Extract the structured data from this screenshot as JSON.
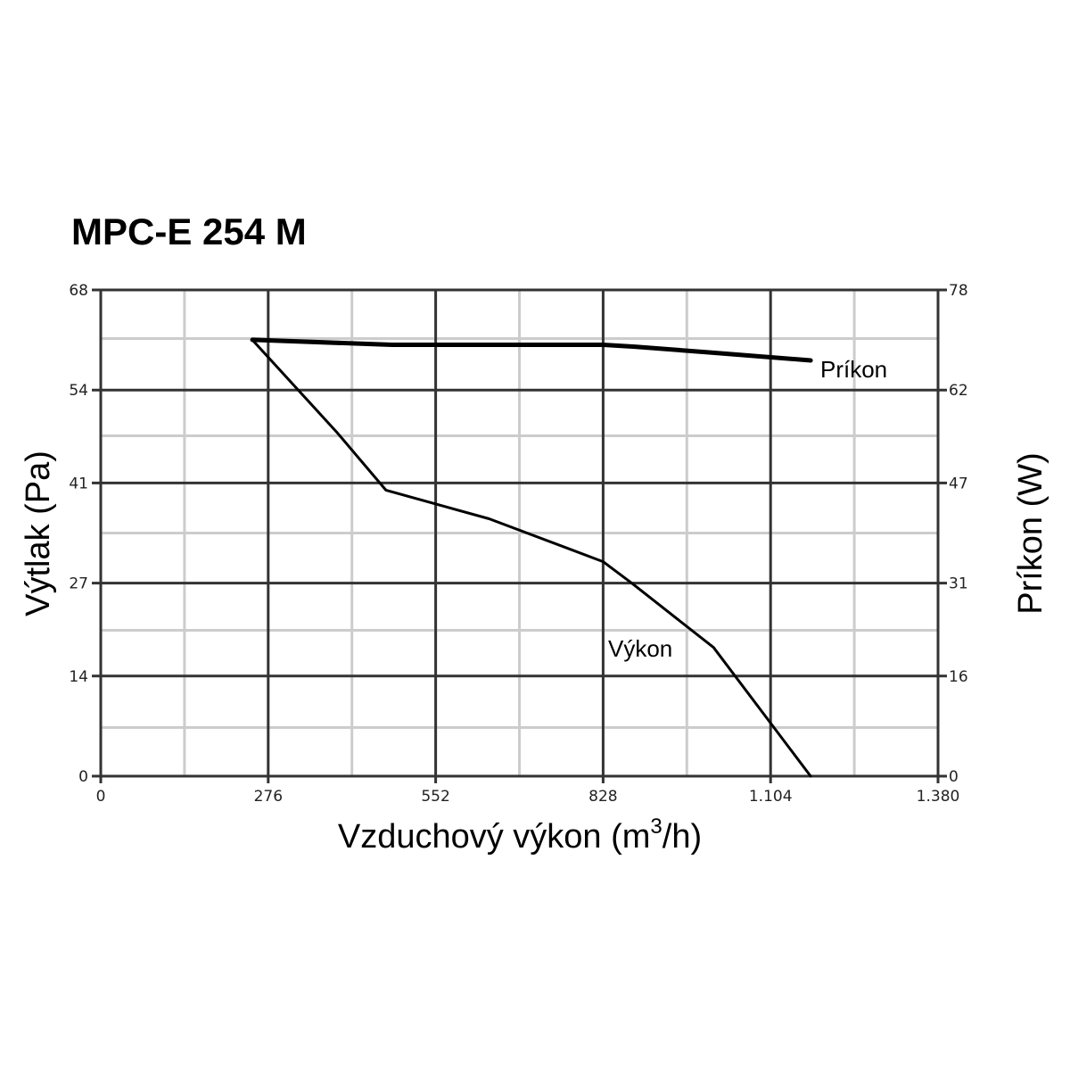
{
  "chart_data": {
    "type": "line",
    "title": "MPC-E 254 M",
    "xlabel_main": "Vzduchový výkon (m",
    "xlabel_sup": "3",
    "xlabel_end": "/h)",
    "ylabel_left": "Výtlak (Pa)",
    "ylabel_right": "Príkon (W)",
    "xlim": [
      0,
      1380
    ],
    "ylim_left": [
      0,
      68
    ],
    "ylim_right": [
      0,
      78
    ],
    "x_ticks": [
      0,
      276,
      552,
      828,
      1104,
      1380
    ],
    "x_tick_labels": [
      "0",
      "276",
      "552",
      "828",
      "1.104",
      "1.380"
    ],
    "y_left_ticks": [
      0,
      14,
      27,
      41,
      54,
      68
    ],
    "y_left_tick_labels": [
      "0",
      "14",
      "27",
      "41",
      "54",
      "68"
    ],
    "y_right_ticks": [
      0,
      16,
      31,
      47,
      62,
      78
    ],
    "y_right_tick_labels": [
      "0",
      "16",
      "31",
      "47",
      "62",
      "78"
    ],
    "grid": true,
    "colors": {
      "major_grid": "#333333",
      "minor_grid": "#cccccc",
      "line": "#000000"
    },
    "series": [
      {
        "name": "Výkon",
        "axis": "left",
        "x": [
          250,
          390,
          470,
          640,
          828,
          875,
          950,
          1010,
          1170
        ],
        "y": [
          61,
          48,
          40,
          36,
          30,
          27,
          22,
          18,
          0
        ]
      },
      {
        "name": "Príkon",
        "axis": "right",
        "x": [
          250,
          480,
          828,
          880,
          1000,
          1170
        ],
        "y": [
          70,
          69.2,
          69.2,
          68.9,
          68,
          66.7
        ]
      }
    ]
  }
}
